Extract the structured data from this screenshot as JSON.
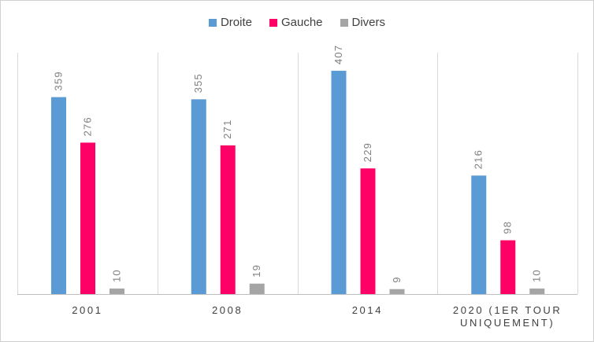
{
  "chart_data": {
    "type": "bar",
    "title": "",
    "xlabel": "",
    "ylabel": "",
    "categories": [
      [
        "2001"
      ],
      [
        "2008"
      ],
      [
        "2014"
      ],
      [
        "2020 (1ER TOUR",
        "UNIQUEMENT)"
      ]
    ],
    "series": [
      {
        "name": "Droite",
        "color": "#5b9bd5",
        "values": [
          359,
          355,
          407,
          216
        ]
      },
      {
        "name": "Gauche",
        "color": "#ff0066",
        "values": [
          276,
          271,
          229,
          98
        ]
      },
      {
        "name": "Divers",
        "color": "#a5a5a5",
        "values": [
          10,
          19,
          9,
          10
        ]
      }
    ],
    "ylim": [
      0,
      440
    ],
    "grid": "vertical separators",
    "legend_position": "top",
    "data_labels": true
  }
}
